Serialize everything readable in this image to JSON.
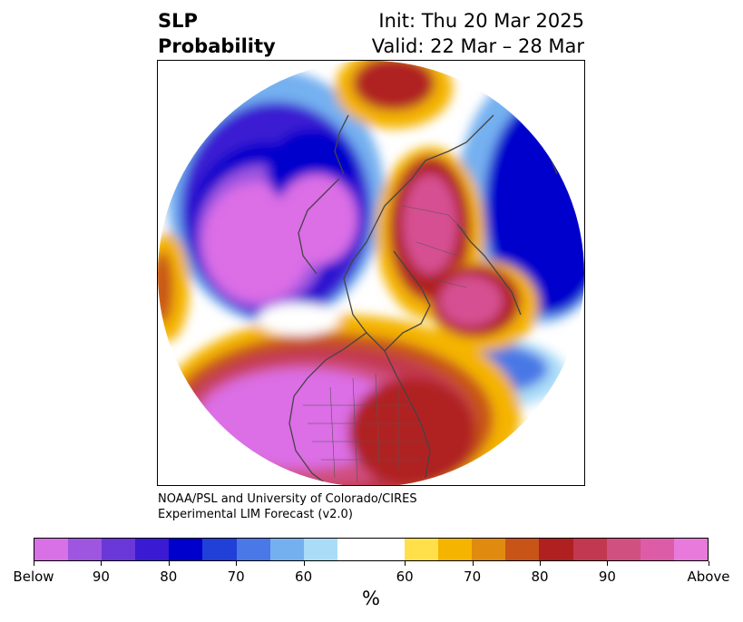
{
  "header": {
    "title_line1": "SLP",
    "title_line2": "Probability",
    "init": "Init: Thu 20 Mar 2025",
    "valid": "Valid: 22 Mar – 28 Mar"
  },
  "credit": {
    "line1": "NOAA/PSL and University of Colorado/CIRES",
    "line2": "Experimental LIM Forecast (v2.0)"
  },
  "colorbar": {
    "colors": [
      "#d870e6",
      "#9e55e0",
      "#6a38d8",
      "#3a1ad2",
      "#0000cc",
      "#2040d8",
      "#4a78e6",
      "#74b0f0",
      "#aadcf8",
      "#ffffff",
      "#ffe04a",
      "#f4b400",
      "#e08a10",
      "#c85418",
      "#b02020",
      "#c23850",
      "#d05080",
      "#dc5ca8",
      "#e77ada"
    ],
    "tick_labels": [
      "Below",
      "90",
      "80",
      "70",
      "60",
      "60",
      "70",
      "80",
      "90",
      "Above"
    ],
    "unit": "%"
  },
  "map": {
    "projection": "north-polar-stereographic",
    "field": "sea level pressure tercile probability",
    "colors": {
      "strong_below": "#dc6ee6",
      "below": "#0000cc",
      "weak_below": "#74b0f0",
      "neutral": "#ffffff",
      "weak_above": "#ffe04a",
      "above": "#b02020",
      "strong_above": "#d64f92"
    }
  }
}
